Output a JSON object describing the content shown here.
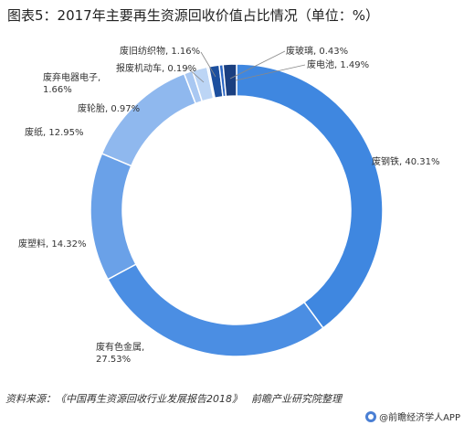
{
  "title": "图表5：2017年主要再生资源回收价值占比情况（单位：%）",
  "chart_data": {
    "type": "pie",
    "title": "图表5：2017年主要再生资源回收价值占比情况（单位：%）",
    "slices": [
      {
        "label": "废钢铁",
        "value": 40.31,
        "color": "#3f87e0"
      },
      {
        "label": "废有色金属",
        "value": 27.53,
        "color": "#4b8ee3"
      },
      {
        "label": "废塑料",
        "value": 14.32,
        "color": "#6aa1e8"
      },
      {
        "label": "废纸",
        "value": 12.95,
        "color": "#8fb8ee"
      },
      {
        "label": "废轮胎",
        "value": 0.97,
        "color": "#a9c8f2"
      },
      {
        "label": "废弃电器电子",
        "value": 1.66,
        "color": "#bcd5f5"
      },
      {
        "label": "报废机动车",
        "value": 0.19,
        "color": "#d2e3f8"
      },
      {
        "label": "废旧纺织物",
        "value": 1.16,
        "color": "#1c4f9e"
      },
      {
        "label": "废玻璃",
        "value": 0.43,
        "color": "#2b66c4"
      },
      {
        "label": "废电池",
        "value": 1.49,
        "color": "#1a3f80"
      }
    ],
    "value_labels": [
      "40.31%",
      "27.53%",
      "14.32%",
      "12.95%",
      "0.97%",
      "1.66%",
      "0.19%",
      "1.16%",
      "0.43%",
      "1.49%"
    ]
  },
  "source": {
    "prefix": "资料来源：",
    "text": "《中国再生资源回收行业发展报告2018》",
    "org": "前瞻产业研究院整理"
  },
  "footer": {
    "brand": "@前瞻经济学人APP"
  }
}
